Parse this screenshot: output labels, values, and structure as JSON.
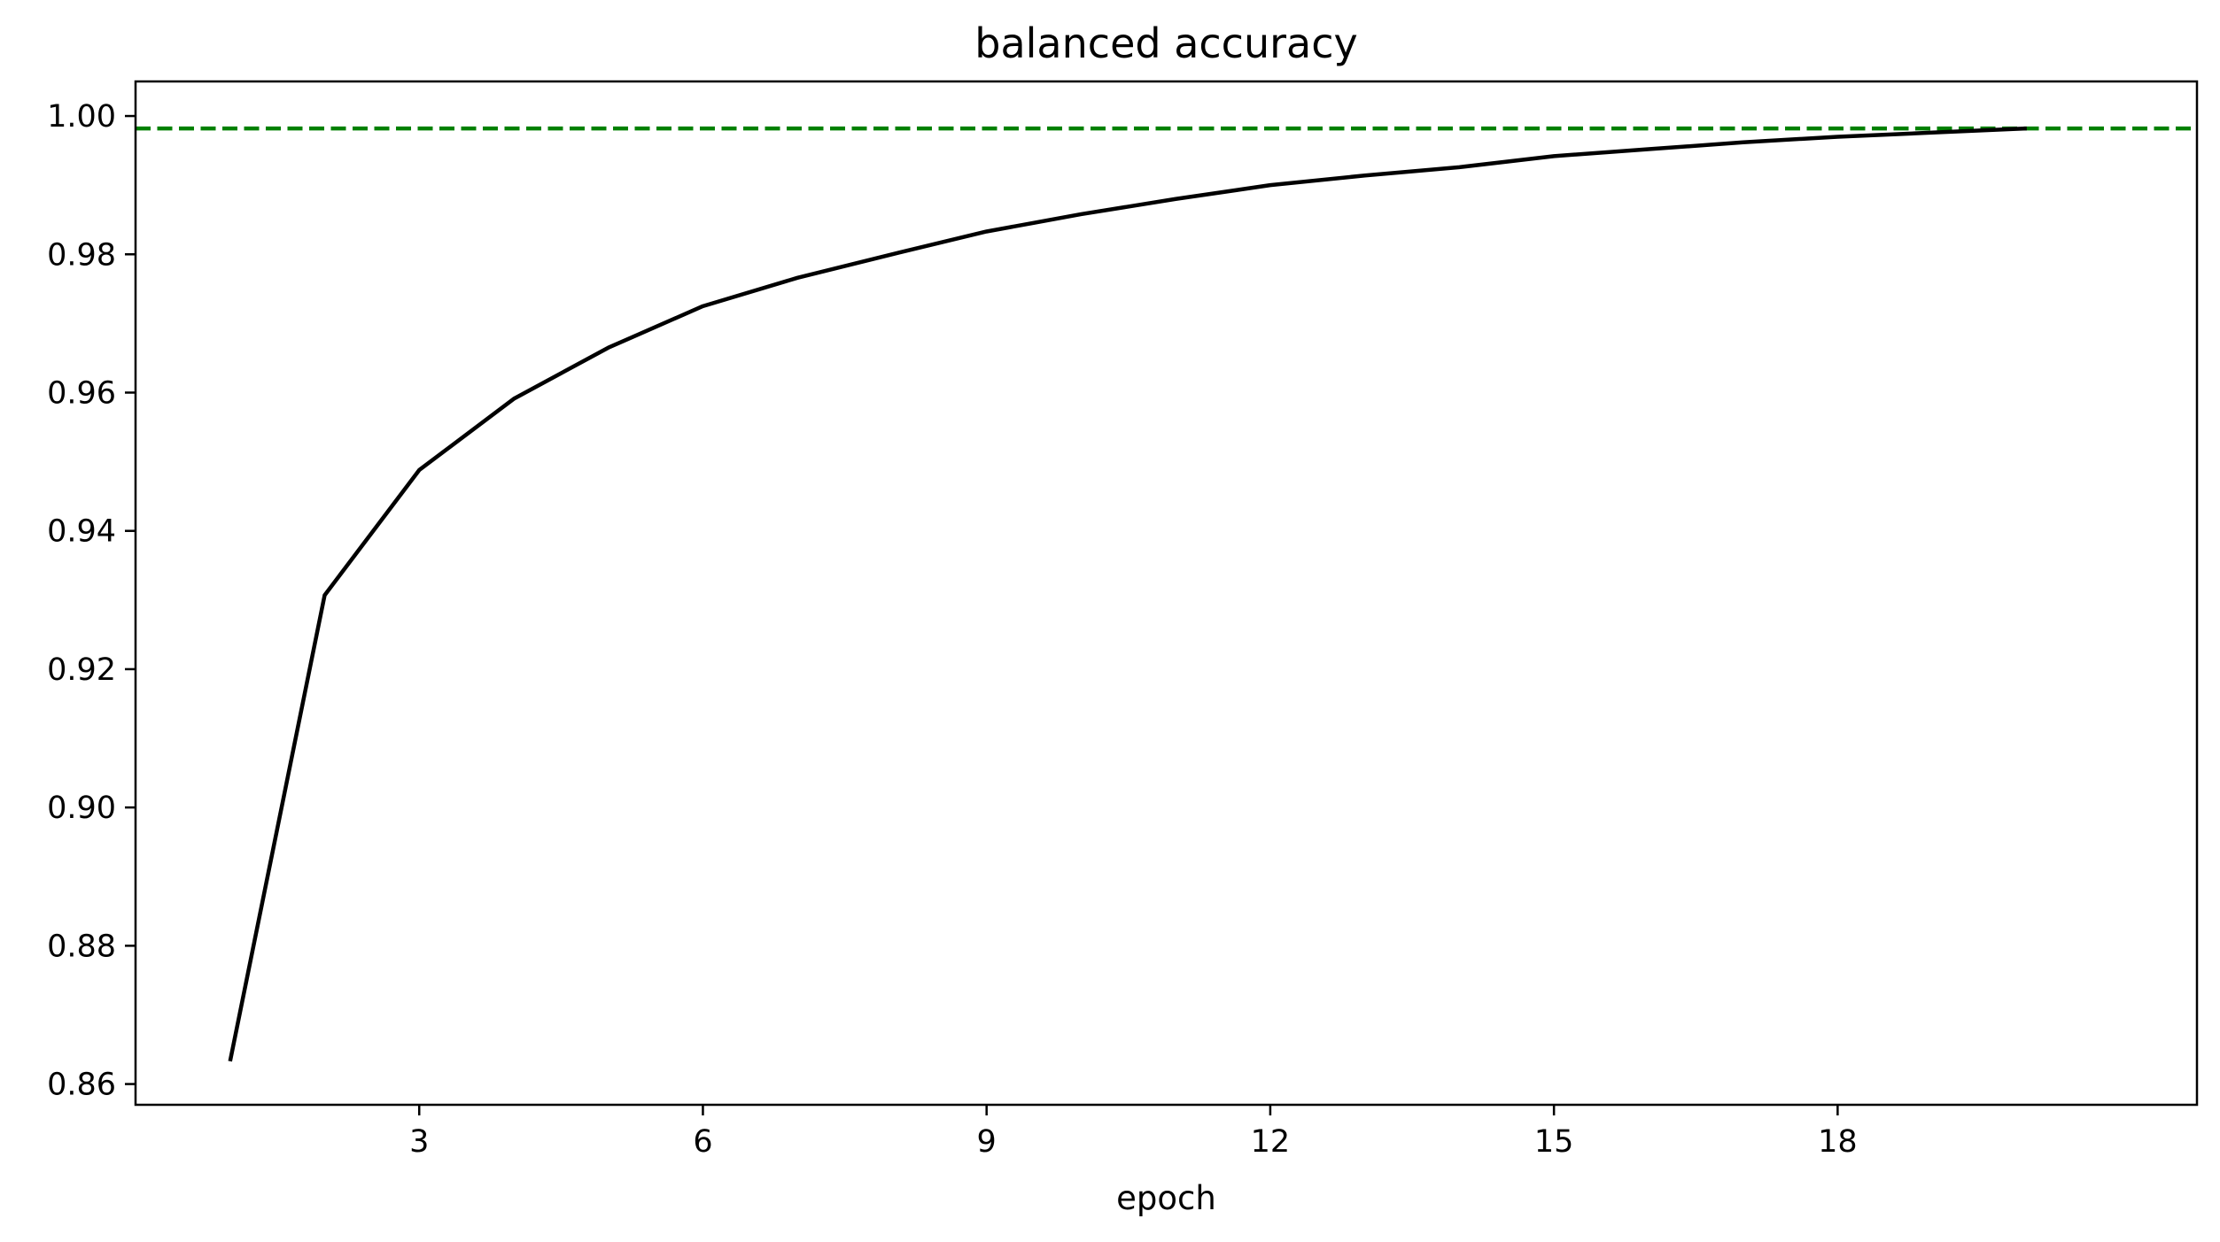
{
  "chart_data": {
    "type": "line",
    "title": "balanced accuracy",
    "xlabel": "epoch",
    "ylabel": "",
    "xlim": [
      0.0,
      21.8
    ],
    "ylim": [
      0.857,
      1.005
    ],
    "xticks": [
      3,
      6,
      9,
      12,
      15,
      18
    ],
    "yticks": [
      0.86,
      0.88,
      0.9,
      0.92,
      0.94,
      0.96,
      0.98,
      1.0
    ],
    "ytick_labels": [
      "0.86",
      "0.88",
      "0.90",
      "0.92",
      "0.94",
      "0.96",
      "0.98",
      "1.00"
    ],
    "grid": false,
    "legend": "none",
    "series": [
      {
        "color": "#000000",
        "style": "solid",
        "x": [
          1,
          2,
          3,
          4,
          5,
          6,
          7,
          8,
          9,
          10,
          11,
          12,
          13,
          14,
          15,
          16,
          17,
          18,
          19,
          20
        ],
        "values": [
          0.8633,
          0.9307,
          0.9488,
          0.9591,
          0.9665,
          0.9725,
          0.9766,
          0.98,
          0.9833,
          0.9858,
          0.988,
          0.99,
          0.9914,
          0.9926,
          0.9942,
          0.9952,
          0.9962,
          0.997,
          0.9976,
          0.9982
        ]
      }
    ],
    "reference_lines": [
      {
        "orientation": "horizontal",
        "y": 0.9982,
        "color": "#008000",
        "style": "dashed"
      }
    ]
  }
}
